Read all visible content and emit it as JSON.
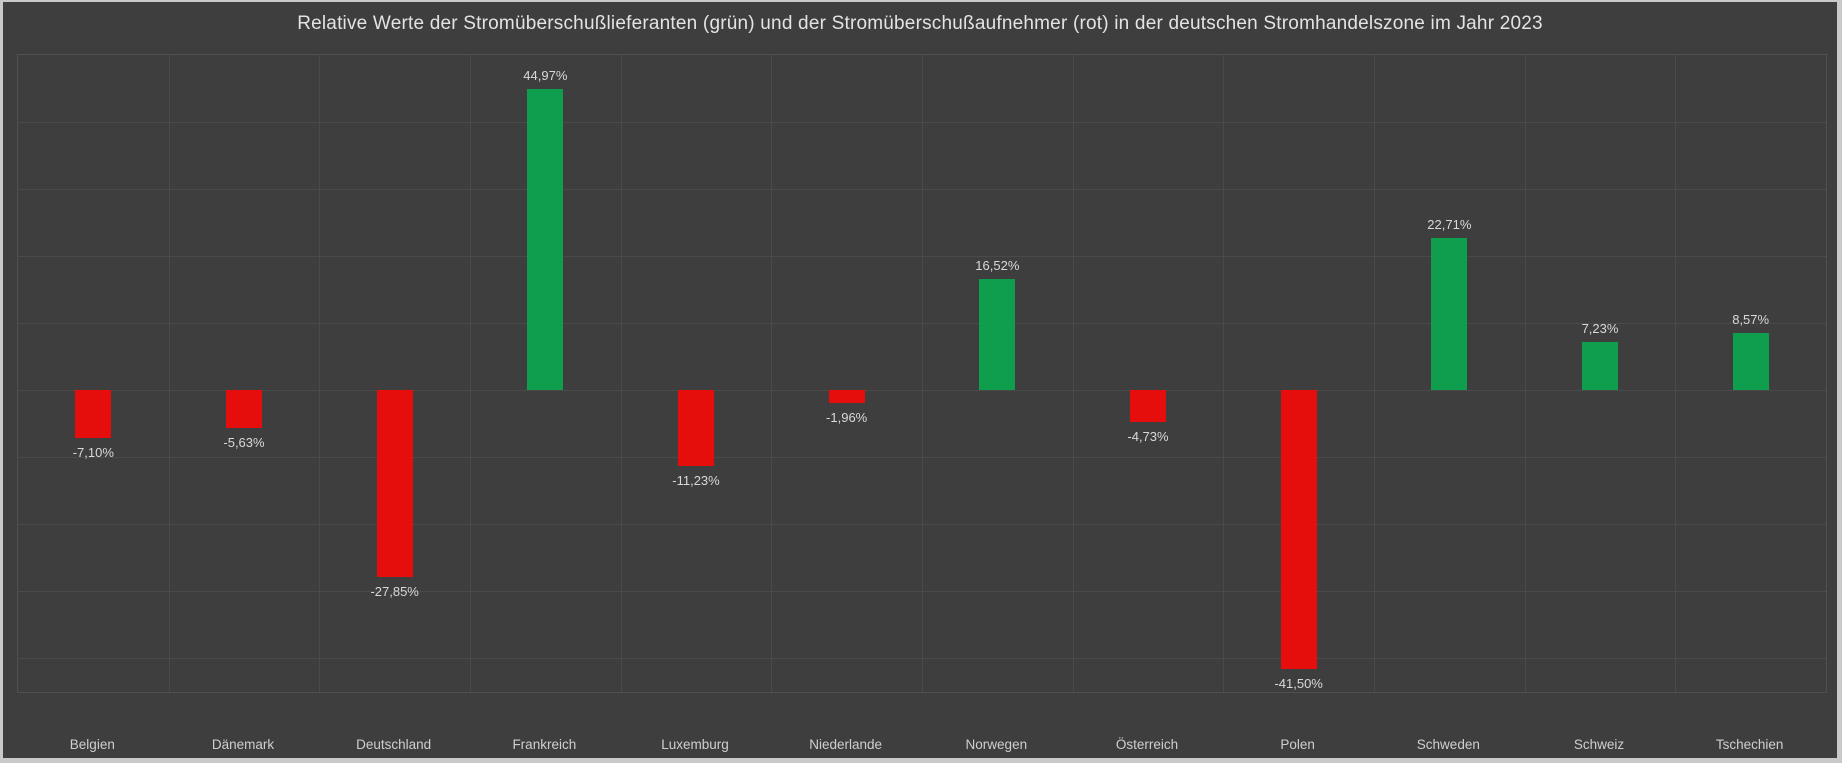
{
  "chart_data": {
    "type": "bar",
    "title": "Relative Werte der Stromüberschußlieferanten (grün) und der Stromüberschußaufnehmer (rot) in der deutschen Stromhandelszone im Jahr 2023",
    "categories": [
      "Belgien",
      "Dänemark",
      "Deutschland",
      "Frankreich",
      "Luxemburg",
      "Niederlande",
      "Norwegen",
      "Österreich",
      "Polen",
      "Schweden",
      "Schweiz",
      "Tschechien"
    ],
    "values": [
      -7.1,
      -5.63,
      -27.85,
      44.97,
      -11.23,
      -1.96,
      16.52,
      -4.73,
      -41.5,
      22.71,
      7.23,
      8.57
    ],
    "value_labels": [
      "-7,10%",
      "-5,63%",
      "-27,85%",
      "44,97%",
      "-11,23%",
      "-1,96%",
      "16,52%",
      "-4,73%",
      "-41,50%",
      "22,71%",
      "7,23%",
      "8,57%"
    ],
    "xlabel": "",
    "ylabel": "",
    "ylim": [
      -45,
      50
    ],
    "grid_step": 10,
    "grid": true,
    "legend_position": "none",
    "colors": {
      "positive": "#0f9e4e",
      "negative": "#e60d0d"
    }
  },
  "theme": {
    "frame": "#c9c9c9",
    "background": "#3e3e3e",
    "gridline": "#4a4a4a",
    "plot_border": "#505050",
    "title_color": "#e3e3e3",
    "value_label_color": "#d9d9d9",
    "axis_label_color": "#cfcfcf"
  }
}
